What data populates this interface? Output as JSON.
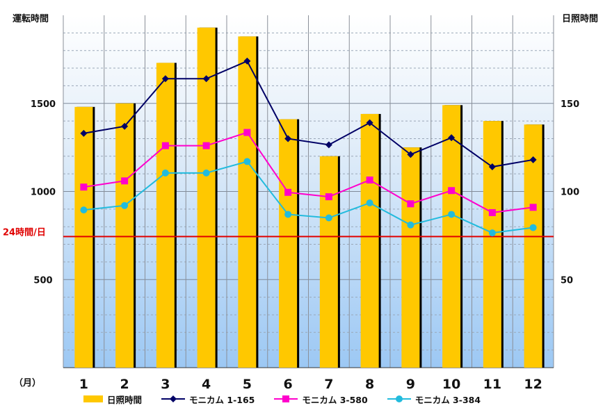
{
  "chart_data": {
    "type": "bar",
    "left_axis_title": "運転時間",
    "right_axis_title": "日照時間",
    "x_unit_label": "（月）",
    "categories": [
      "1",
      "2",
      "3",
      "4",
      "5",
      "6",
      "7",
      "8",
      "9",
      "10",
      "11",
      "12"
    ],
    "left_ylim": [
      0,
      2000
    ],
    "left_ticks": [
      500,
      1000,
      1500
    ],
    "right_ylim": [
      0,
      200
    ],
    "right_ticks": [
      50,
      100,
      150
    ],
    "grid": true,
    "reference_line": {
      "label": "24時間/日",
      "value": 744,
      "color": "#e00000"
    },
    "bar_series": {
      "name": "日照時間",
      "axis": "right",
      "color": "#ffc800",
      "values": [
        148,
        150,
        173,
        193,
        188,
        141,
        120,
        144,
        125,
        149,
        140,
        138
      ]
    },
    "line_series": [
      {
        "name": "モニカム 1-165",
        "axis": "left",
        "color": "#000066",
        "marker": "diamond",
        "values": [
          1330,
          1370,
          1640,
          1640,
          1740,
          1300,
          1265,
          1390,
          1210,
          1305,
          1140,
          1180
        ]
      },
      {
        "name": "モニカム 3-580",
        "axis": "left",
        "color": "#ff00cc",
        "marker": "square",
        "values": [
          1025,
          1060,
          1260,
          1260,
          1335,
          995,
          970,
          1065,
          930,
          1005,
          880,
          910
        ]
      },
      {
        "name": "モニカム 3-384",
        "axis": "left",
        "color": "#22bbdd",
        "marker": "circle",
        "values": [
          895,
          920,
          1105,
          1105,
          1170,
          870,
          850,
          935,
          810,
          870,
          765,
          795
        ]
      }
    ],
    "legend_position": "bottom"
  }
}
